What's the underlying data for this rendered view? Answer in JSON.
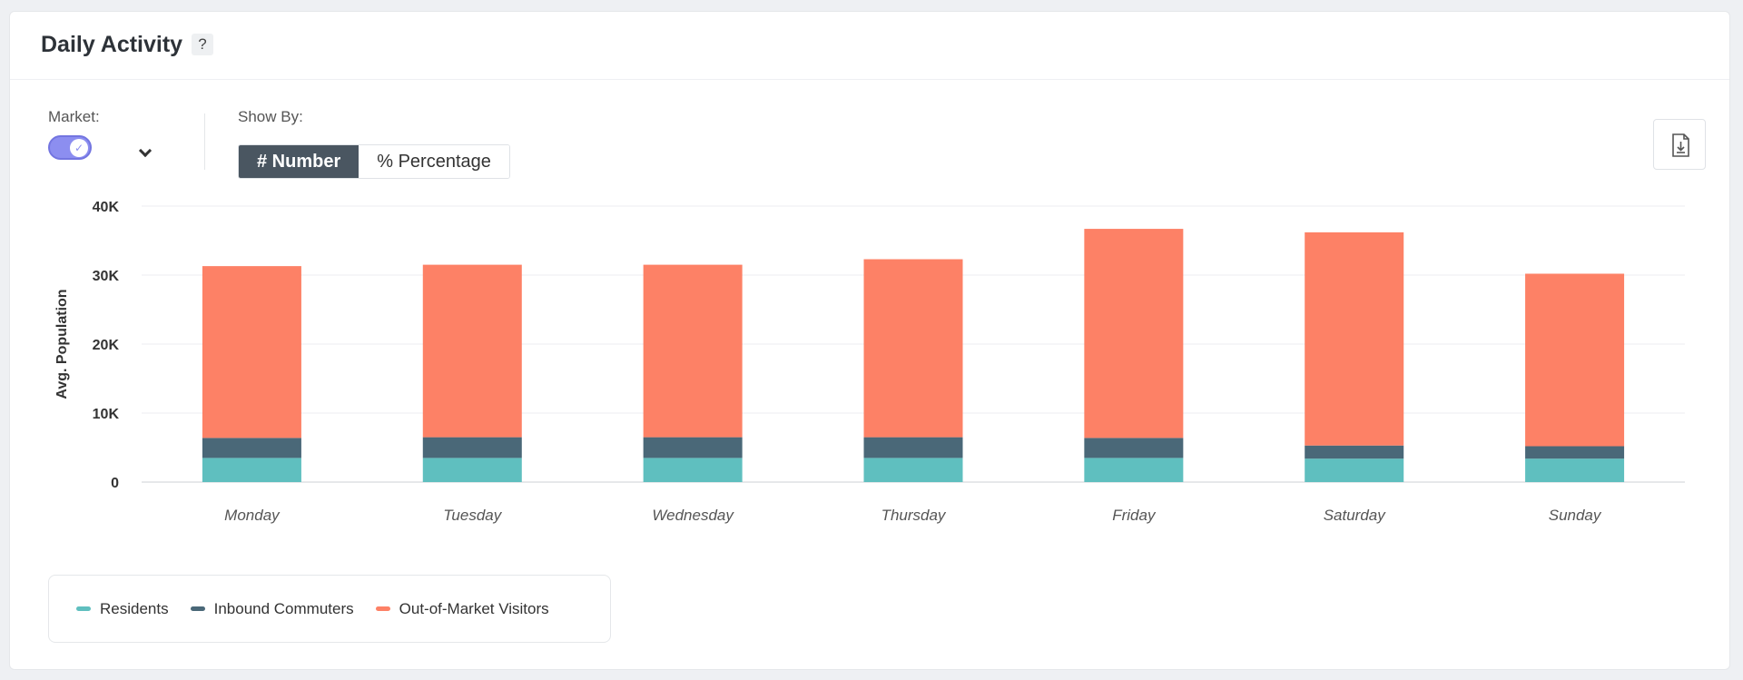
{
  "header": {
    "title": "Daily Activity",
    "help": "?"
  },
  "controls": {
    "market_label": "Market:",
    "market_toggle_on": true,
    "show_by_label": "Show By:",
    "show_by_options": [
      "# Number",
      "% Percentage"
    ],
    "show_by_selected": "# Number"
  },
  "icons": {
    "help": "question-icon",
    "download": "download-icon",
    "chevron": "chevron-down-icon",
    "check": "check-icon"
  },
  "colors": {
    "residents": "#5fbfbf",
    "inbound": "#4a6878",
    "visitors": "#fd8166",
    "toggle": "#8c8ef0"
  },
  "chart_data": {
    "type": "bar",
    "stacked": true,
    "ylabel": "Avg. Population",
    "ylim": [
      0,
      40000
    ],
    "yticks": [
      0,
      10000,
      20000,
      30000,
      40000
    ],
    "ytick_labels": [
      "0",
      "10K",
      "20K",
      "30K",
      "40K"
    ],
    "categories": [
      "Monday",
      "Tuesday",
      "Wednesday",
      "Thursday",
      "Friday",
      "Saturday",
      "Sunday"
    ],
    "series": [
      {
        "name": "Residents",
        "color": "#5fbfbf",
        "values": [
          3500,
          3500,
          3500,
          3500,
          3500,
          3400,
          3400
        ]
      },
      {
        "name": "Inbound Commuters",
        "color": "#4a6878",
        "values": [
          2900,
          3000,
          3000,
          3000,
          2900,
          1900,
          1800
        ]
      },
      {
        "name": "Out-of-Market Visitors",
        "color": "#fd8166",
        "values": [
          24900,
          25000,
          25000,
          25800,
          30300,
          30900,
          25000
        ]
      }
    ],
    "grid": true,
    "legend_position": "bottom-left"
  }
}
